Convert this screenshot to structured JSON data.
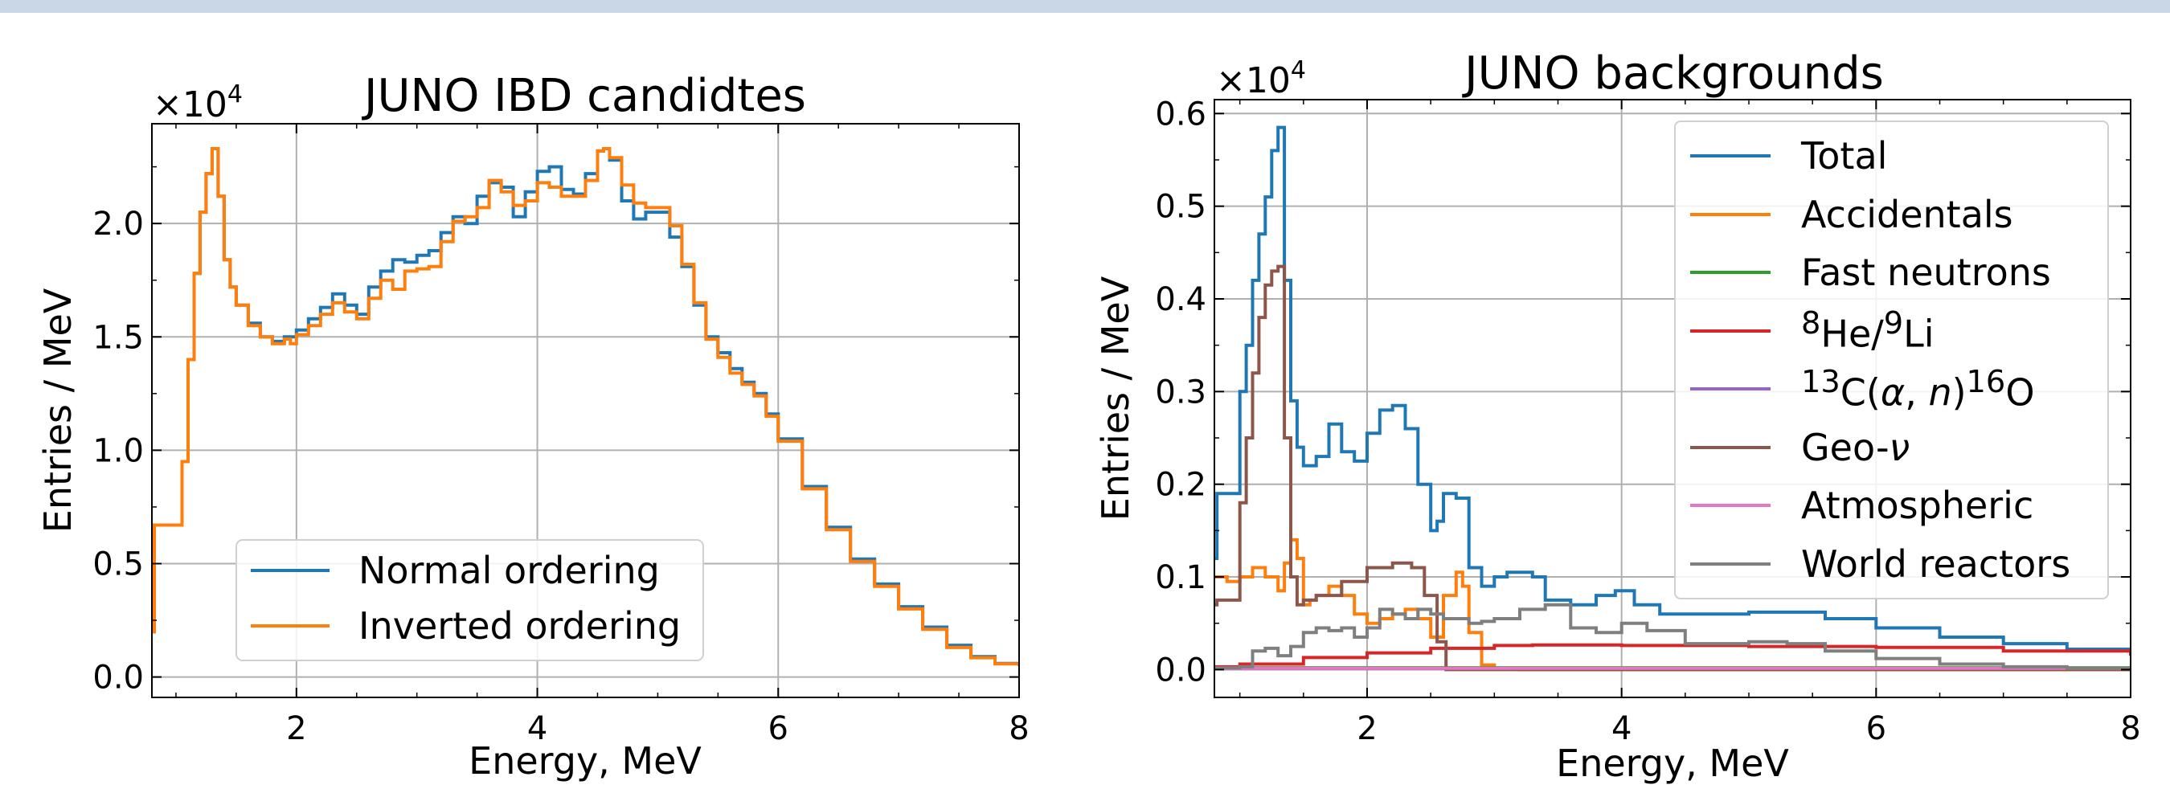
{
  "chart_data": [
    {
      "type": "line",
      "title": "JUNO IBD candidtes",
      "xlabel": "Energy, MeV",
      "ylabel": "Entries / MeV",
      "multiplier": "×10",
      "multiplier_exp": "4",
      "xlim": [
        0.8,
        8.0
      ],
      "ylim": [
        -900,
        24400
      ],
      "xticks": [
        2,
        4,
        6,
        8
      ],
      "xtick_labels": [
        "2",
        "4",
        "6",
        "8"
      ],
      "yticks": [
        0,
        5000,
        10000,
        15000,
        20000
      ],
      "ytick_labels": [
        "0.0",
        "0.5",
        "1.0",
        "1.5",
        "2.0"
      ],
      "grid": true,
      "legend_position": "lower-center",
      "series": [
        {
          "name": "Normal ordering",
          "color": "#1f77b4",
          "x": [
            0.8,
            0.82,
            1.02,
            1.05,
            1.1,
            1.15,
            1.2,
            1.25,
            1.3,
            1.35,
            1.4,
            1.45,
            1.5,
            1.6,
            1.7,
            1.8,
            1.9,
            2.0,
            2.1,
            2.2,
            2.3,
            2.4,
            2.5,
            2.6,
            2.7,
            2.8,
            2.9,
            3.0,
            3.1,
            3.2,
            3.3,
            3.4,
            3.5,
            3.6,
            3.7,
            3.8,
            3.9,
            4.0,
            4.1,
            4.2,
            4.3,
            4.4,
            4.5,
            4.55,
            4.6,
            4.7,
            4.8,
            4.9,
            5.0,
            5.1,
            5.2,
            5.3,
            5.4,
            5.5,
            5.6,
            5.7,
            5.8,
            5.9,
            6.0,
            6.2,
            6.4,
            6.6,
            6.8,
            7.0,
            7.2,
            7.4,
            7.6,
            7.8,
            8.0
          ],
          "y": [
            2000,
            6700,
            6700,
            9500,
            14000,
            17800,
            20500,
            22200,
            23300,
            21200,
            18400,
            17200,
            16400,
            15600,
            15000,
            14800,
            15000,
            15300,
            15800,
            16300,
            16900,
            16400,
            16000,
            17200,
            17900,
            18400,
            18300,
            18600,
            18800,
            19600,
            20300,
            20000,
            21200,
            21800,
            21600,
            20300,
            21400,
            22300,
            22500,
            21500,
            21300,
            22200,
            23200,
            23300,
            22800,
            21000,
            20200,
            20500,
            20500,
            19400,
            18100,
            16400,
            15000,
            14300,
            13600,
            13000,
            12500,
            11600,
            10500,
            8400,
            6600,
            5200,
            4100,
            3100,
            2200,
            1400,
            900,
            600,
            500
          ]
        },
        {
          "name": "Inverted ordering",
          "color": "#ff7f0e",
          "x": [
            0.8,
            0.82,
            1.02,
            1.05,
            1.1,
            1.15,
            1.2,
            1.25,
            1.3,
            1.35,
            1.4,
            1.45,
            1.5,
            1.6,
            1.7,
            1.8,
            1.9,
            1.95,
            2.0,
            2.1,
            2.2,
            2.3,
            2.4,
            2.5,
            2.6,
            2.7,
            2.8,
            2.9,
            3.0,
            3.1,
            3.2,
            3.3,
            3.4,
            3.5,
            3.6,
            3.7,
            3.8,
            3.9,
            4.0,
            4.1,
            4.2,
            4.3,
            4.4,
            4.5,
            4.55,
            4.6,
            4.7,
            4.8,
            4.9,
            5.0,
            5.1,
            5.2,
            5.3,
            5.4,
            5.5,
            5.6,
            5.7,
            5.8,
            5.9,
            6.0,
            6.2,
            6.4,
            6.6,
            6.8,
            7.0,
            7.2,
            7.4,
            7.6,
            7.8,
            8.0
          ],
          "y": [
            2000,
            6700,
            6700,
            9500,
            14000,
            17800,
            20500,
            22200,
            23300,
            21200,
            18400,
            17200,
            16400,
            15500,
            15000,
            14700,
            14900,
            14700,
            15100,
            15500,
            16000,
            16500,
            16100,
            15800,
            16700,
            17500,
            17100,
            17900,
            18000,
            18100,
            19200,
            20100,
            20300,
            20700,
            21900,
            21400,
            20800,
            21000,
            21800,
            21600,
            21200,
            21200,
            21900,
            23200,
            23300,
            22900,
            21700,
            20900,
            20700,
            20700,
            19900,
            18200,
            16500,
            14900,
            14100,
            13400,
            12900,
            12400,
            11500,
            10400,
            8300,
            6500,
            5100,
            4000,
            3000,
            2100,
            1300,
            850,
            580,
            480
          ]
        }
      ]
    },
    {
      "type": "line",
      "title": "JUNO backgrounds",
      "xlabel": "Energy, MeV",
      "ylabel": "Entries / MeV",
      "multiplier": "×10",
      "multiplier_exp": "4",
      "xlim": [
        0.8,
        8.0
      ],
      "ylim": [
        -300,
        6150
      ],
      "xticks": [
        2,
        4,
        6,
        8
      ],
      "xtick_labels": [
        "2",
        "4",
        "6",
        "8"
      ],
      "yticks": [
        0,
        1000,
        2000,
        3000,
        4000,
        5000,
        6000
      ],
      "ytick_labels": [
        "0.0",
        "0.1",
        "0.2",
        "0.3",
        "0.4",
        "0.5",
        "0.6"
      ],
      "grid": true,
      "legend_position": "upper-right",
      "series": [
        {
          "name": "Total",
          "color": "#1f77b4",
          "x": [
            0.8,
            0.82,
            0.95,
            1.0,
            1.05,
            1.1,
            1.15,
            1.2,
            1.25,
            1.3,
            1.35,
            1.4,
            1.45,
            1.5,
            1.6,
            1.7,
            1.8,
            1.9,
            2.0,
            2.1,
            2.2,
            2.3,
            2.4,
            2.5,
            2.55,
            2.6,
            2.7,
            2.8,
            2.9,
            3.0,
            3.1,
            3.2,
            3.3,
            3.4,
            3.6,
            3.8,
            3.95,
            4.1,
            4.3,
            4.6,
            5.0,
            5.3,
            5.6,
            6.0,
            6.5,
            7.0,
            7.5,
            8.0
          ],
          "y": [
            1200,
            1900,
            1900,
            3000,
            3500,
            4200,
            4700,
            5100,
            5600,
            5850,
            4200,
            2900,
            2400,
            2200,
            2300,
            2650,
            2350,
            2250,
            2550,
            2800,
            2850,
            2600,
            2000,
            1500,
            1600,
            1900,
            1850,
            1100,
            900,
            1000,
            1050,
            1050,
            1000,
            750,
            700,
            800,
            850,
            700,
            600,
            600,
            620,
            620,
            550,
            450,
            350,
            280,
            220,
            180
          ]
        },
        {
          "name": "Accidentals",
          "color": "#ff7f0e",
          "x": [
            0.8,
            0.82,
            0.9,
            1.0,
            1.1,
            1.2,
            1.3,
            1.35,
            1.4,
            1.45,
            1.5,
            1.55,
            1.6,
            1.7,
            1.8,
            1.9,
            2.0,
            2.1,
            2.2,
            2.3,
            2.4,
            2.5,
            2.6,
            2.7,
            2.75,
            2.8,
            2.9,
            3.0,
            3.2,
            4.0,
            8.0
          ],
          "y": [
            1000,
            1000,
            950,
            1000,
            1100,
            1000,
            850,
            1150,
            1400,
            1200,
            700,
            750,
            800,
            900,
            800,
            600,
            500,
            550,
            600,
            650,
            550,
            350,
            800,
            1050,
            900,
            400,
            50,
            10,
            0,
            0,
            0
          ]
        },
        {
          "name": "Fast neutrons",
          "color": "#2ca02c",
          "x": [
            0.8,
            8.0
          ],
          "y": [
            20,
            20
          ]
        },
        {
          "name": "<sup>8</sup>He/<sup>9</sup>Li",
          "color": "#d62728",
          "x": [
            0.8,
            1.0,
            1.5,
            2.0,
            2.5,
            3.0,
            3.3,
            4.0,
            5.0,
            6.0,
            7.0,
            8.0
          ],
          "y": [
            30,
            60,
            130,
            180,
            230,
            260,
            265,
            260,
            250,
            240,
            200,
            150
          ]
        },
        {
          "name": "<sup>13</sup>C(<i>α</i>, <i>n</i>)<sup>16</sup>O",
          "color": "#9467bd",
          "x": [
            0.8,
            8.0
          ],
          "y": [
            10,
            10
          ]
        },
        {
          "name": "Geo-<i>ν</i>",
          "color": "#8c564b",
          "x": [
            0.8,
            0.82,
            0.95,
            1.0,
            1.05,
            1.1,
            1.15,
            1.2,
            1.25,
            1.3,
            1.35,
            1.4,
            1.45,
            1.5,
            1.6,
            1.8,
            2.0,
            2.2,
            2.35,
            2.45,
            2.55,
            2.62,
            2.7,
            3.0,
            8.0
          ],
          "y": [
            700,
            750,
            750,
            1800,
            2500,
            3200,
            3800,
            4150,
            4300,
            4350,
            2500,
            1000,
            700,
            750,
            800,
            950,
            1100,
            1150,
            1100,
            800,
            300,
            0,
            0,
            0,
            0
          ]
        },
        {
          "name": "Atmospheric",
          "color": "#e377c2",
          "x": [
            0.8,
            8.0
          ],
          "y": [
            15,
            15
          ]
        },
        {
          "name": "World reactors",
          "color": "#7f7f7f",
          "x": [
            0.8,
            1.0,
            1.1,
            1.2,
            1.3,
            1.4,
            1.5,
            1.6,
            1.7,
            1.8,
            1.9,
            2.0,
            2.1,
            2.2,
            2.3,
            2.4,
            2.5,
            2.6,
            2.7,
            2.8,
            2.9,
            3.0,
            3.2,
            3.4,
            3.6,
            3.8,
            4.0,
            4.2,
            4.5,
            5.0,
            5.3,
            5.6,
            6.0,
            6.5,
            7.0,
            7.5,
            8.0
          ],
          "y": [
            20,
            30,
            200,
            230,
            150,
            250,
            400,
            450,
            420,
            450,
            350,
            450,
            650,
            600,
            550,
            650,
            600,
            550,
            550,
            500,
            520,
            550,
            650,
            700,
            450,
            400,
            500,
            420,
            280,
            300,
            280,
            200,
            120,
            60,
            30,
            15,
            5
          ]
        }
      ]
    }
  ]
}
